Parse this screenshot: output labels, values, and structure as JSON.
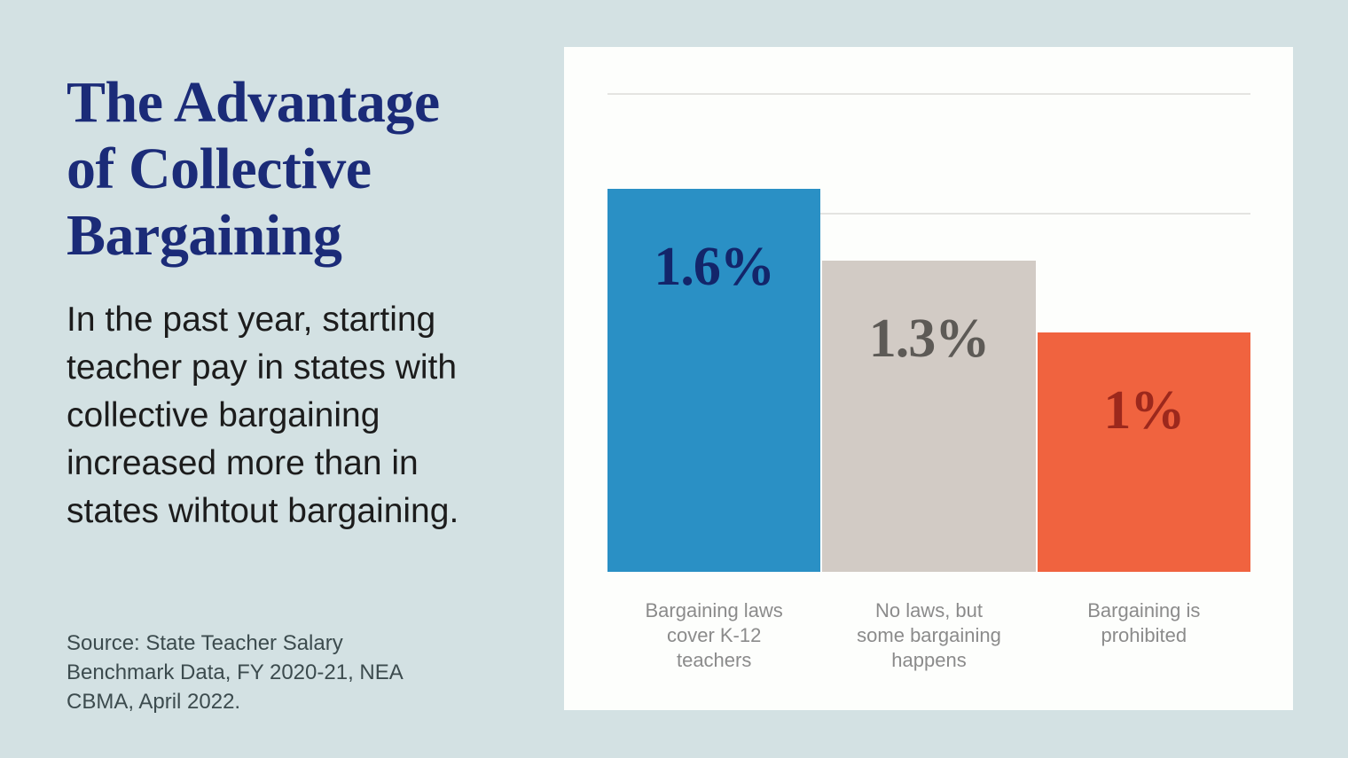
{
  "page": {
    "background_color": "#d3e1e3",
    "panel_color": "#fdfefc"
  },
  "left_column": {
    "title": "The Advantage of Collective Bargaining",
    "title_lines": [
      "The Advantage",
      "of Collective",
      "Bargaining"
    ],
    "title_color": "#1b2b78",
    "body": "In the past year, starting teacher pay in states with collective bargaining increased more than in states wihtout bargaining.",
    "body_lines": [
      "In the past year, starting",
      "teacher pay in states with",
      "collective bargaining",
      "increased more than in",
      "states wihtout bargaining."
    ],
    "source": "Source: State Teacher Salary Benchmark Data, FY 2020-21, NEA CBMA, April 2022.",
    "source_lines": [
      "Source: State Teacher Salary",
      "Benchmark Data, FY 2020-21, NEA",
      "CBMA, April 2022."
    ]
  },
  "chart_data": {
    "type": "bar",
    "title": "",
    "xlabel": "",
    "ylabel": "",
    "unit": "%",
    "categories": [
      "Bargaining laws cover K-12 teachers",
      "No laws, but some bargaining happens",
      "Bargaining is prohibited"
    ],
    "category_lines": [
      [
        "Bargaining laws",
        "cover K-12",
        "teachers"
      ],
      [
        "No laws, but",
        "some bargaining",
        "happens"
      ],
      [
        "Bargaining is",
        "prohibited"
      ]
    ],
    "values": [
      1.6,
      1.3,
      1.0
    ],
    "value_labels": [
      "1.6%",
      "1.3%",
      "1%"
    ],
    "bar_colors": [
      "#2a90c5",
      "#d2cbc5",
      "#f0633f"
    ],
    "value_label_colors": [
      "#13256a",
      "#5d5a56",
      "#9c281c"
    ],
    "ylim": [
      0,
      2.0
    ],
    "gridlines_at": [
      1.5,
      2.0
    ],
    "gridline_color": "#e4e4e1",
    "grid": true,
    "legend": false,
    "axis_line": false
  }
}
